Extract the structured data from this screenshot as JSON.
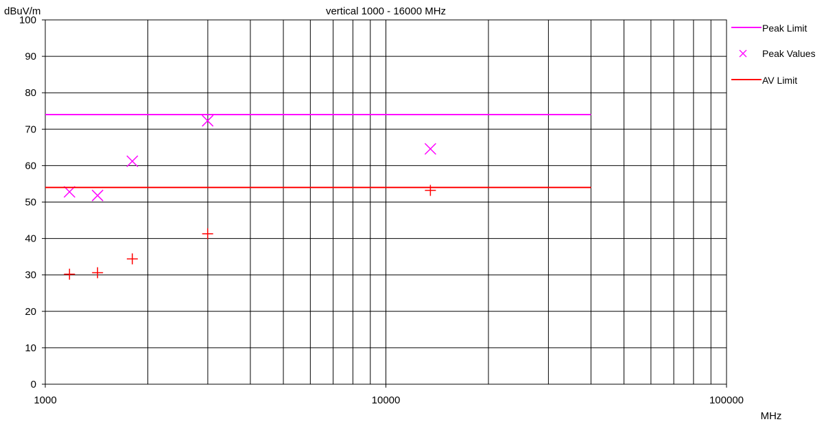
{
  "chart_data": {
    "type": "scatter",
    "title": "vertical 1000 - 16000 MHz",
    "ylabel": "dBuV/m",
    "xlabel": "MHz",
    "xscale": "log",
    "xlim": [
      1000,
      100000
    ],
    "ylim": [
      0,
      100
    ],
    "grid": true,
    "legend_position": "right",
    "x_ticks": [
      1000,
      10000,
      100000
    ],
    "x_tick_labels": [
      "1000",
      "10000",
      "100000"
    ],
    "y_ticks": [
      0,
      10,
      20,
      30,
      40,
      50,
      60,
      70,
      80,
      90,
      100
    ],
    "y_tick_labels": [
      "0",
      "10",
      "20",
      "30",
      "40",
      "50",
      "60",
      "70",
      "80",
      "90",
      "100"
    ],
    "series": [
      {
        "name": "Peak Limit",
        "kind": "line",
        "color": "#ff00ff",
        "x": [
          1000,
          40000
        ],
        "y": [
          74,
          74
        ]
      },
      {
        "name": "Peak Values",
        "kind": "marker-x",
        "color": "#ff00ff",
        "x": [
          1178,
          1424,
          1801,
          2997,
          13510
        ],
        "y": [
          52.8,
          51.8,
          61.2,
          72.3,
          64.6
        ]
      },
      {
        "name": "AV Limit",
        "kind": "line",
        "color": "#ff0000",
        "x": [
          1000,
          40000
        ],
        "y": [
          54,
          54
        ]
      },
      {
        "name": "",
        "kind": "marker-plus",
        "color": "#ff0000",
        "x": [
          1178,
          1424,
          1801,
          2997,
          13510
        ],
        "y": [
          30.2,
          30.6,
          34.4,
          41.3,
          53.2
        ]
      }
    ]
  }
}
